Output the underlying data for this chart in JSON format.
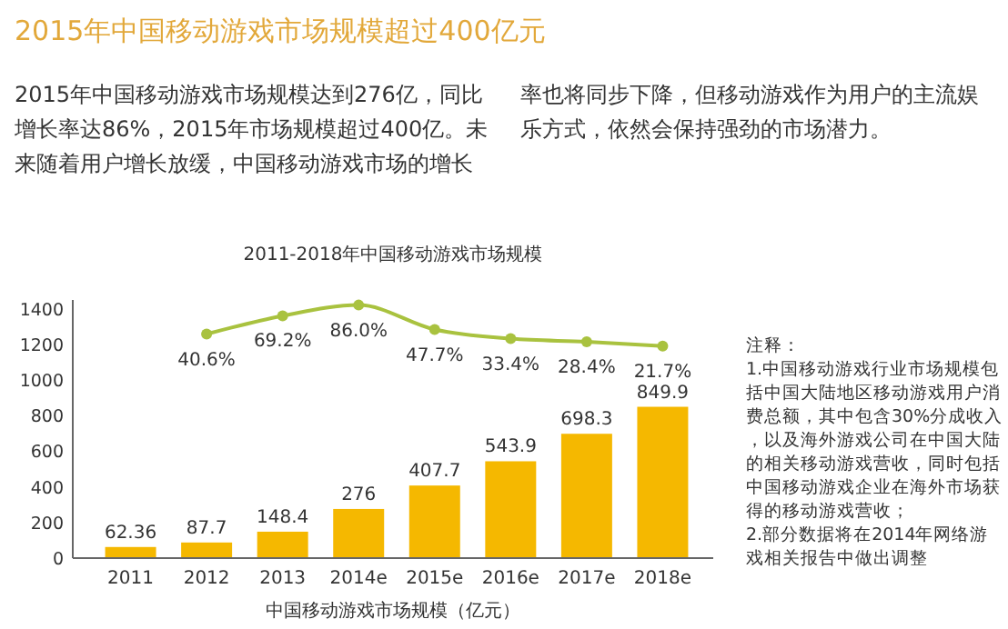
{
  "chart_data": {
    "type": "bar",
    "title": "2015年中国移动游戏市场规模超过400亿元",
    "subtitle": "2015年中国移动游戏市场规模达到276亿，同比增长率达86%，2015年市场规模超过400亿。未来随着用户增长放缓，中国移动游戏市场的增长率也将同步下降，但移动游戏作为用户的主流娱乐方式，依然会保持强劲的市场潜力。",
    "legend_title": "2011-2018年中国移动游戏市场规模",
    "xlabel": "中国移动游戏市场规模（亿元）",
    "categories": [
      "2011",
      "2012",
      "2013",
      "2014e",
      "2015e",
      "2016e",
      "2017e",
      "2018e"
    ],
    "series": [
      {
        "color": "#f5b800",
        "values": [
          62.36,
          87.7,
          148.4,
          276,
          407.7,
          543.9,
          698.3,
          849.9
        ],
        "value_labels": [
          "62.36",
          "87.7",
          "148.4",
          "276",
          "407.7",
          "543.9",
          "698.3",
          "849.9"
        ]
      },
      {
        "type": "line",
        "axis": "y2",
        "color": "#a9c23f",
        "values": [
          null,
          40.6,
          69.2,
          86.0,
          47.7,
          33.4,
          28.4,
          21.7
        ],
        "value_labels": [
          null,
          "40.6%",
          "69.2%",
          "86.0%",
          "47.7%",
          "33.4%",
          "28.4%",
          "21.7%"
        ]
      }
    ],
    "ylim": [
      0,
      1450
    ],
    "yticks": [
      0,
      200,
      400,
      600,
      800,
      1000,
      1200,
      1400
    ],
    "y2lim": [
      -310,
      94
    ],
    "tick_labels": "xy",
    "marker": "circle",
    "grid": false,
    "annotations": [
      "注释：",
      "1.中国移动游戏行业市场规模包括中国大陆地区移动游戏用户消费总额，其中包含30%分成收入，以及海外游戏公司在中国大陆的相关移动游戏营收，同时包括中国移动游戏企业在海外市场获得的移动游戏营收；",
      "2.部分数据将在2014年网络游戏相关报告中做出调整"
    ]
  }
}
